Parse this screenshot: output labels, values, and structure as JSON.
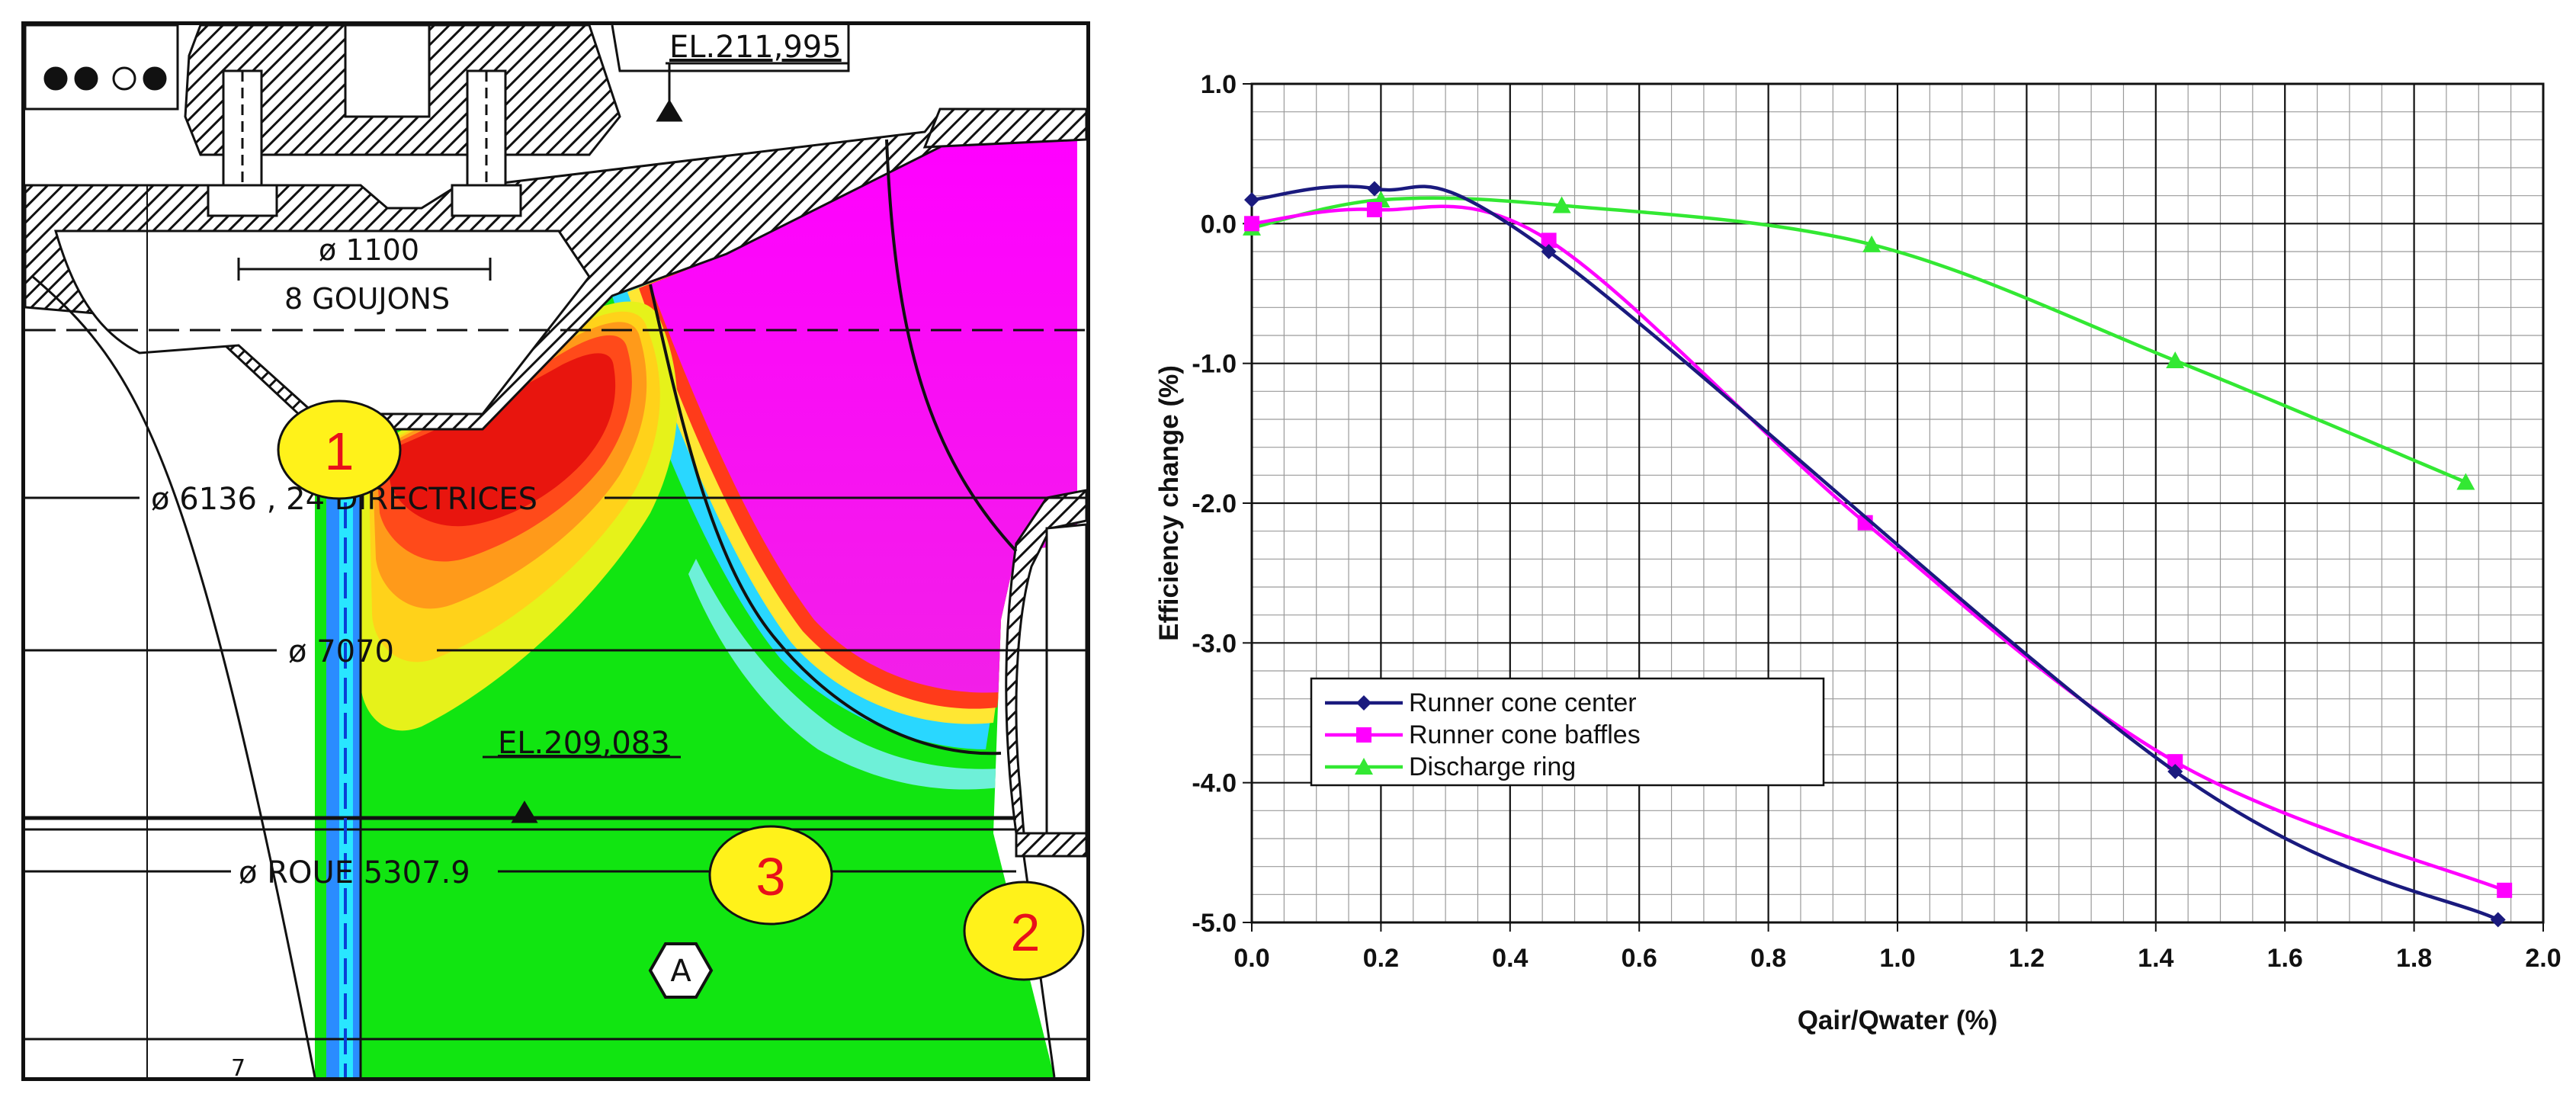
{
  "drawing": {
    "elevation_top": "EL.211,995",
    "elevation_mid": "EL.209,083",
    "bolt_circle": "ø 1100",
    "bolt_count": "8 GOUJONS",
    "directrices": "ø 6136 , 24 DIRECTRICES",
    "diameter_7070": "ø 7070",
    "runner_diameter": "ø ROUE 5307.9",
    "section_marker": "A",
    "location_markers": [
      "1",
      "2",
      "3"
    ],
    "stray_mark": "7"
  },
  "chart_data": {
    "type": "line",
    "title": "",
    "xlabel": "Qair/Qwater (%)",
    "ylabel": "Efficiency change  (%)",
    "xlim": [
      0.0,
      2.0
    ],
    "ylim": [
      -5.0,
      1.0
    ],
    "x_ticks": [
      "0.0",
      "0.2",
      "0.4",
      "0.6",
      "0.8",
      "1.0",
      "1.2",
      "1.4",
      "1.6",
      "1.8",
      "2.0"
    ],
    "y_ticks": [
      "1.0",
      "0.0",
      "-1.0",
      "-2.0",
      "-3.0",
      "-4.0",
      "-5.0"
    ],
    "grid": true,
    "legend_position": "lower-left",
    "series": [
      {
        "name": "Runner cone center",
        "color": "#1a1a7e",
        "marker": "diamond",
        "x": [
          0.0,
          0.19,
          0.46,
          1.43,
          1.93
        ],
        "y": [
          0.17,
          0.25,
          -0.2,
          -3.92,
          -4.98
        ]
      },
      {
        "name": "Runner cone baffles",
        "color": "#ff00ff",
        "marker": "square",
        "x": [
          0.0,
          0.19,
          0.46,
          0.95,
          1.43,
          1.94
        ],
        "y": [
          0.0,
          0.1,
          -0.12,
          -2.14,
          -3.85,
          -4.77
        ]
      },
      {
        "name": "Discharge ring",
        "color": "#33e833",
        "marker": "triangle",
        "x": [
          0.0,
          0.2,
          0.48,
          0.96,
          1.43,
          1.88
        ],
        "y": [
          -0.03,
          0.17,
          0.13,
          -0.15,
          -0.98,
          -1.85
        ]
      }
    ]
  }
}
